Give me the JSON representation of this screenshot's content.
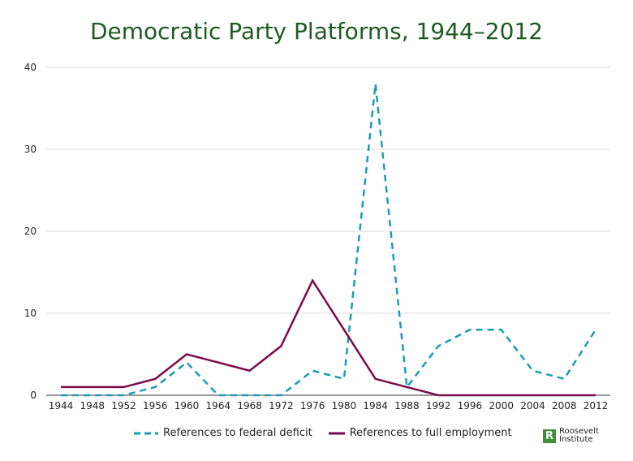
{
  "chart_data": {
    "type": "line",
    "title": "Democratic Party Platforms, 1944–2012",
    "x": [
      1944,
      1948,
      1952,
      1956,
      1960,
      1964,
      1968,
      1972,
      1976,
      1980,
      1984,
      1988,
      1992,
      1996,
      2000,
      2004,
      2008,
      2012
    ],
    "ylim": [
      0,
      40
    ],
    "yticks": [
      0,
      10,
      20,
      30,
      40
    ],
    "grid": true,
    "legend_position": "bottom",
    "series": [
      {
        "name": "References to federal deficit",
        "color": "#1a9bb5",
        "style": "dashed",
        "values": [
          0,
          0,
          0,
          1,
          4,
          0,
          0,
          0,
          3,
          2,
          38,
          1,
          6,
          8,
          8,
          3,
          2,
          8
        ]
      },
      {
        "name": "References to full employment",
        "color": "#7a0b4a",
        "style": "solid",
        "values": [
          1,
          1,
          1,
          2,
          5,
          4,
          3,
          6,
          14,
          8,
          2,
          1,
          0,
          0,
          0,
          0,
          0,
          0
        ]
      }
    ]
  },
  "logo": {
    "mark": "R",
    "line1": "Roosevelt",
    "line2": "Institute",
    "color": "#3d8f3a"
  }
}
